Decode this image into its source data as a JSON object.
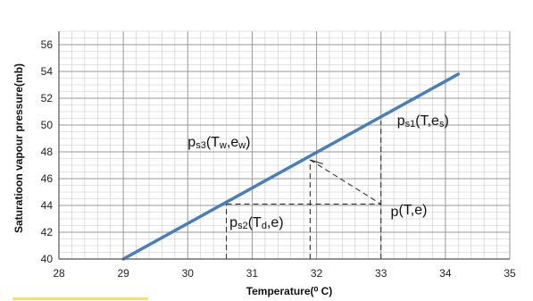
{
  "chart_data": {
    "type": "line",
    "xlabel": "Temperature(⁰ C)",
    "ylabel": "Saturatioon vapour pressure(mb)",
    "xlim": [
      28,
      35
    ],
    "ylim": [
      40,
      57
    ],
    "xticks": [
      28,
      29,
      30,
      31,
      32,
      33,
      34,
      35
    ],
    "yticks": [
      40,
      42,
      44,
      46,
      48,
      50,
      52,
      54,
      56
    ],
    "x_tick_labels": [
      "28",
      "29",
      "30",
      "31",
      "32",
      "33",
      "34",
      "35"
    ],
    "y_tick_labels": [
      "40",
      "42",
      "44",
      "46",
      "48",
      "50",
      "52",
      "54",
      "56"
    ],
    "grid": true,
    "minor_grid": {
      "x_step": 0.2,
      "y_step": 0.5
    },
    "series": [
      {
        "color": "#4a7ebb",
        "x": [
          29.0,
          34.2
        ],
        "y": [
          40.0,
          53.8
        ]
      }
    ],
    "guides": [
      {
        "style": "dashed",
        "x": [
          33.0,
          33.0
        ],
        "y": [
          40.0,
          50.3
        ]
      },
      {
        "style": "dashed",
        "x": [
          31.9,
          31.9
        ],
        "y": [
          40.0,
          47.4
        ]
      },
      {
        "style": "dashed",
        "x": [
          30.6,
          30.6
        ],
        "y": [
          40.0,
          44.1
        ]
      },
      {
        "style": "dashed",
        "x": [
          30.6,
          33.0
        ],
        "y": [
          44.1,
          44.1
        ]
      },
      {
        "style": "dashed",
        "x": [
          31.9,
          33.0
        ],
        "y": [
          47.4,
          44.1
        ]
      },
      {
        "style": "solid",
        "x": [
          31.9,
          32.1
        ],
        "y": [
          47.4,
          47.1
        ]
      }
    ],
    "annotations": [
      {
        "main": "p",
        "sub": "s3",
        "rest": "(T",
        "sub2": "w",
        "rest2": ",e",
        "sub3": "w",
        "end": ")",
        "x": 30.0,
        "y": 48.4
      },
      {
        "main": "p",
        "sub": "s1",
        "rest": "(T,e",
        "sub2": "s",
        "rest2": ")",
        "sub3": "",
        "end": "",
        "x": 33.25,
        "y": 50.0
      },
      {
        "main": "p",
        "sub": "s2",
        "rest": "(T",
        "sub2": "d",
        "rest2": ",e)",
        "sub3": "",
        "end": "",
        "x": 30.65,
        "y": 42.4
      },
      {
        "main": "p",
        "sub": "",
        "rest": "(T,e)",
        "sub2": "",
        "rest2": "",
        "sub3": "",
        "end": "",
        "x": 33.15,
        "y": 43.2
      }
    ]
  }
}
